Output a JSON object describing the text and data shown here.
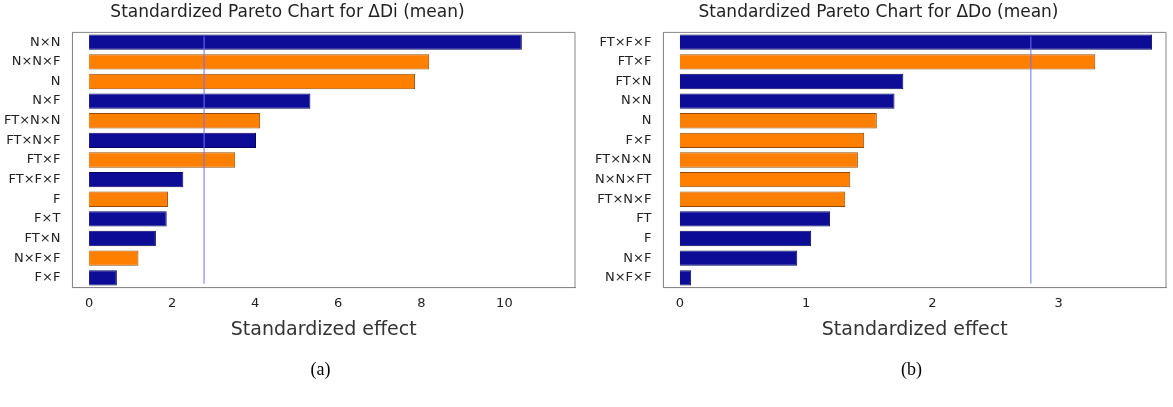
{
  "chart_data": [
    {
      "type": "bar",
      "orientation": "horizontal",
      "title": "Standardized Pareto Chart for ΔDi (mean)",
      "xlabel": "Standardized effect",
      "categories": [
        "N×N",
        "N×N×F",
        "N",
        "N×F",
        "FT×N×N",
        "FT×N×F",
        "FT×F",
        "FT×F×F",
        "F",
        "F×T",
        "FT×N",
        "N×F×F",
        "F×F"
      ],
      "values": [
        10.42,
        8.19,
        7.85,
        5.33,
        4.12,
        4.02,
        3.52,
        2.27,
        1.9,
        1.87,
        1.61,
        1.19,
        0.67
      ],
      "colors": [
        "#0c0c96",
        "#ff7f00",
        "#ff7f00",
        "#0c0c96",
        "#ff7f00",
        "#0c0c96",
        "#ff7f00",
        "#0c0c96",
        "#ff7f00",
        "#0c0c96",
        "#0c0c96",
        "#ff7f00",
        "#0c0c96"
      ],
      "xlim": [
        -0.4,
        11.7
      ],
      "xticks": [
        0,
        2,
        4,
        6,
        8,
        10
      ],
      "ref_lines": [
        {
          "axis": "x",
          "value": 2.77,
          "color": "#7070ff"
        }
      ],
      "annotations": [
        "(a)"
      ]
    },
    {
      "type": "bar",
      "orientation": "horizontal",
      "title": "Standardized Pareto Chart for ΔDo (mean)",
      "xlabel": "Standardized effect",
      "categories": [
        "FT×F×F",
        "FT×F",
        "FT×N",
        "N×N",
        "N",
        "F×F",
        "FT×N×N",
        "N×N×FT",
        "FT×N×F",
        "FT",
        "F",
        "N×F",
        "N×F×F"
      ],
      "values": [
        3.74,
        3.29,
        1.77,
        1.7,
        1.56,
        1.46,
        1.41,
        1.35,
        1.31,
        1.19,
        1.04,
        0.93,
        0.09
      ],
      "colors": [
        "#0c0c96",
        "#ff7f00",
        "#0c0c96",
        "#0c0c96",
        "#ff7f00",
        "#ff7f00",
        "#ff7f00",
        "#ff7f00",
        "#ff7f00",
        "#0c0c96",
        "#0c0c96",
        "#0c0c96",
        "#0c0c96"
      ],
      "xlim": [
        -0.13,
        3.85
      ],
      "xticks": [
        0,
        1,
        2,
        3
      ],
      "ref_lines": [
        {
          "axis": "x",
          "value": 2.78,
          "color": "#7070ff"
        }
      ],
      "annotations": [
        "(b)"
      ]
    }
  ]
}
